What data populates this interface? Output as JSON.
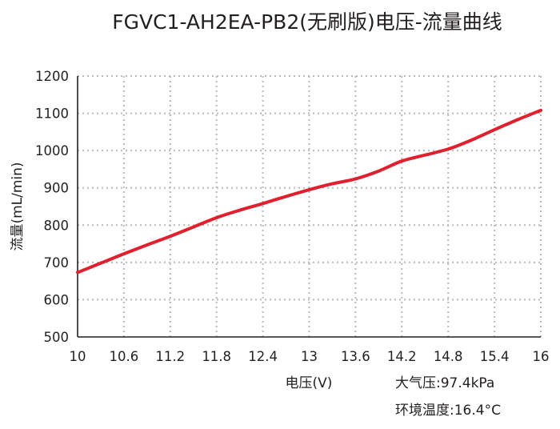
{
  "chart_data": {
    "type": "line",
    "title": "FGVC1-AH2EA-PB2(无刷版)电压-流量曲线",
    "xlabel": "电压(V)",
    "ylabel": "流量(mL/min)",
    "xlim": [
      10,
      16
    ],
    "ylim": [
      500,
      1200
    ],
    "x_ticks": [
      "10",
      "10.6",
      "11.2",
      "11.8",
      "12.4",
      "13",
      "13.6",
      "14.2",
      "14.8",
      "15.4",
      "16"
    ],
    "y_ticks": [
      "500",
      "600",
      "700",
      "800",
      "900",
      "1000",
      "1100",
      "1200"
    ],
    "grid": true,
    "line_color": "#e0202e",
    "series": [
      {
        "x": [
          10,
          10.3,
          10.6,
          10.9,
          11.2,
          11.5,
          11.8,
          12.1,
          12.4,
          12.7,
          13.0,
          13.3,
          13.6,
          13.9,
          14.2,
          14.5,
          14.8,
          15.1,
          15.4,
          15.7,
          16
        ],
        "values": [
          673,
          698,
          723,
          747,
          770,
          795,
          820,
          840,
          858,
          877,
          895,
          911,
          924,
          945,
          972,
          988,
          1004,
          1028,
          1056,
          1083,
          1108
        ]
      }
    ],
    "annotations": [
      "大气压:97.4kPa",
      "环境温度:16.4°C"
    ]
  }
}
